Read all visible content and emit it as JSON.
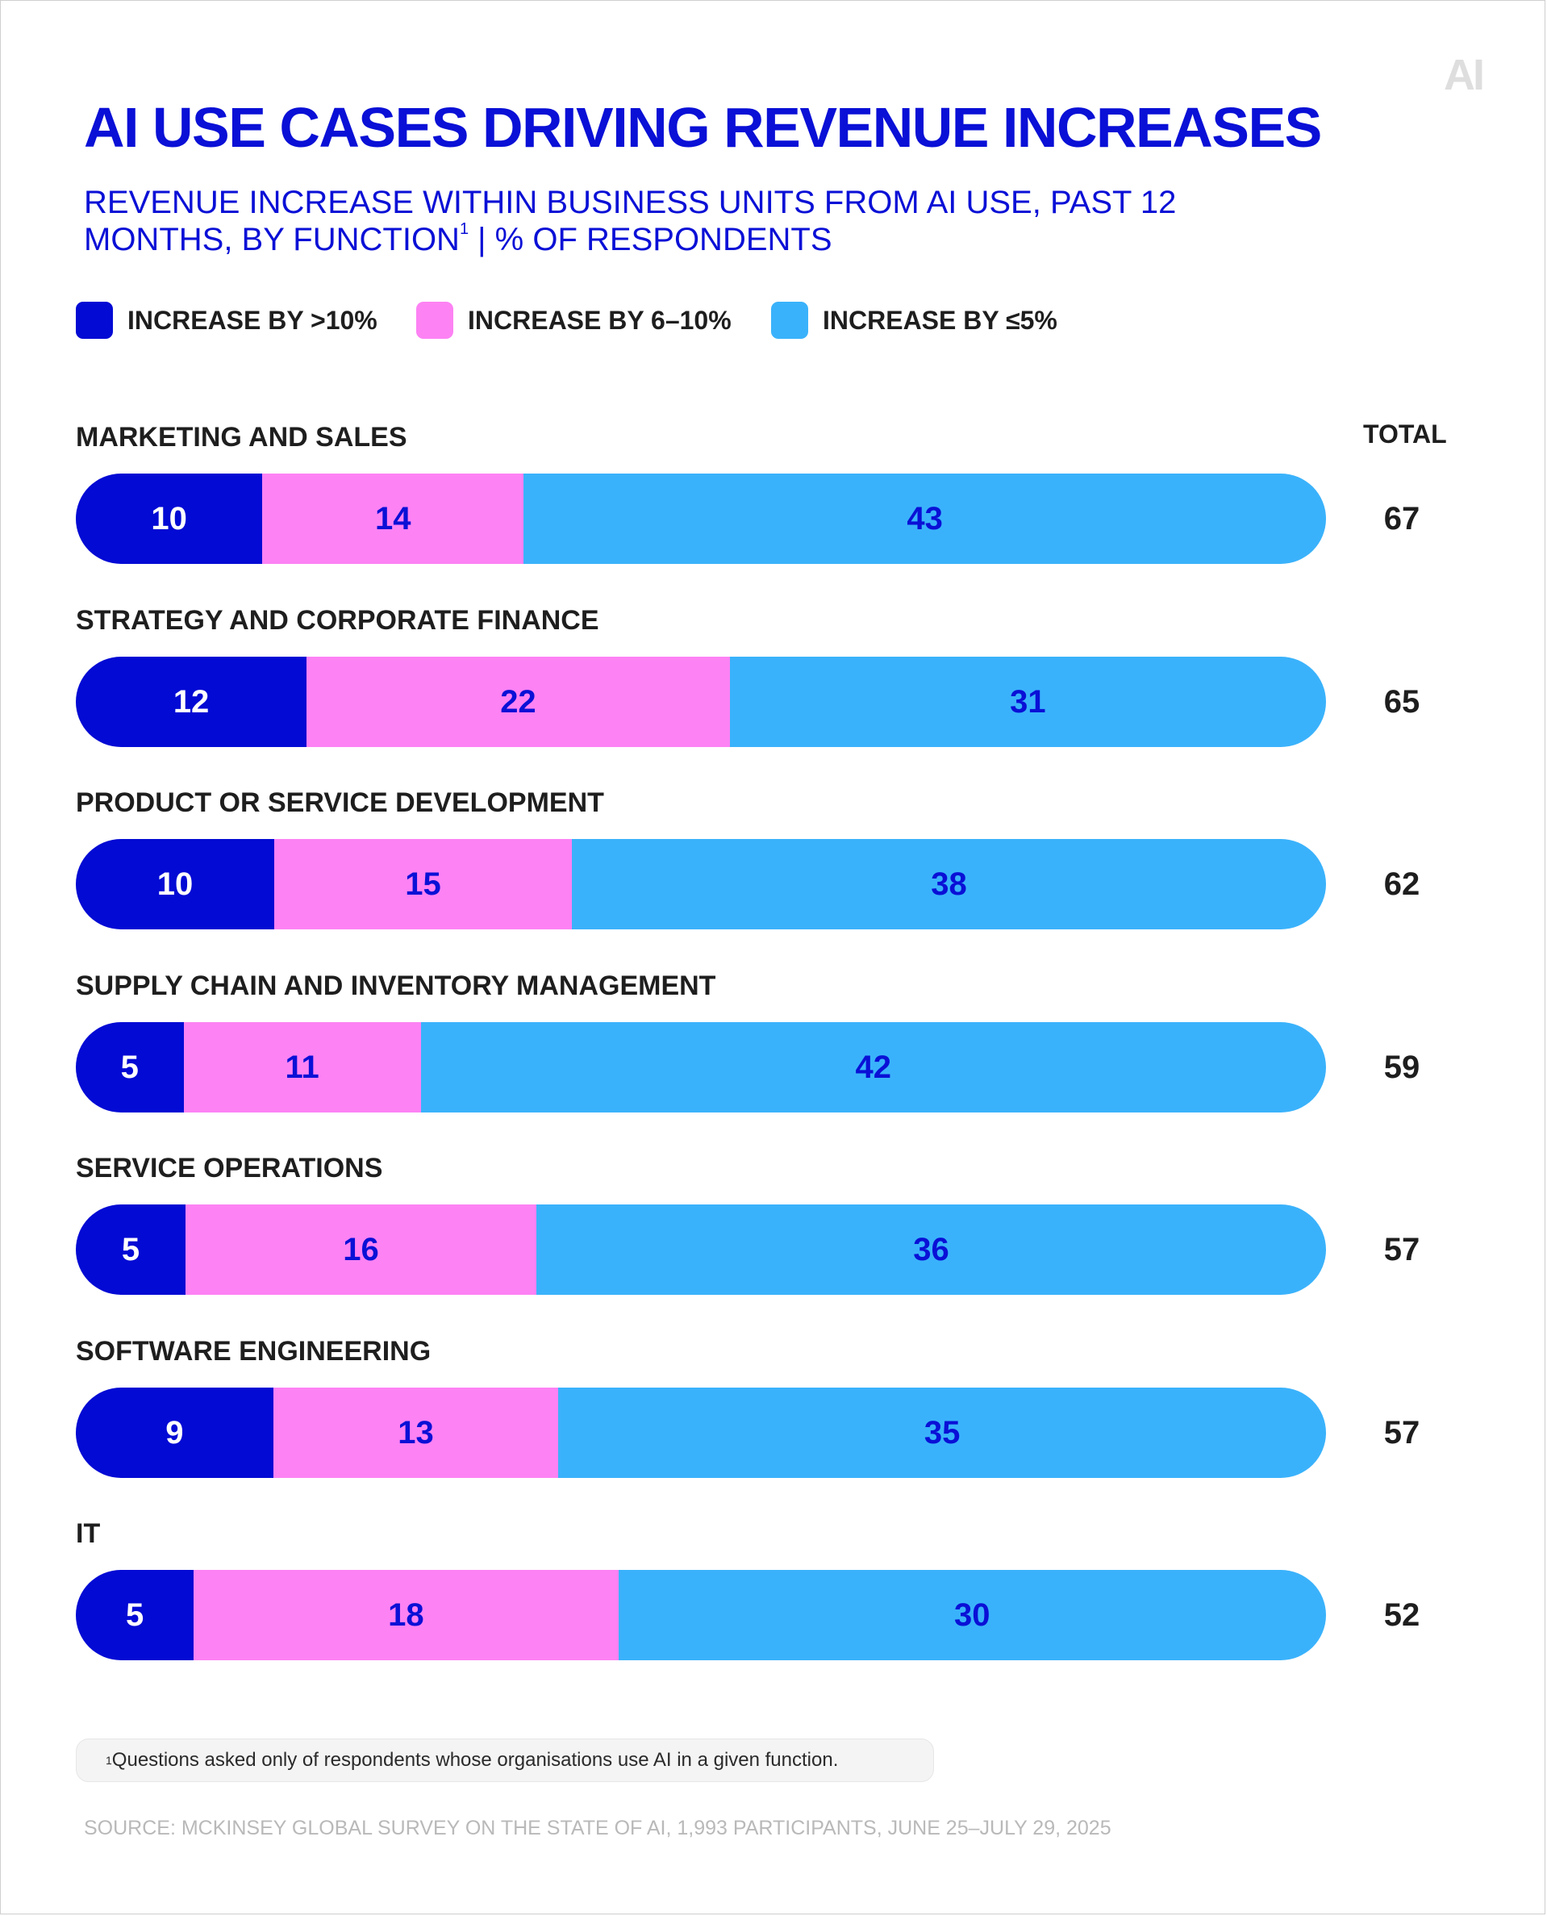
{
  "logo_text": "AI",
  "title": "AI USE CASES DRIVING REVENUE INCREASES",
  "subtitle_main": "REVENUE INCREASE WITHIN BUSINESS UNITS FROM AI USE, PAST 12 MONTHS, BY FUNCTION",
  "subtitle_sup": "1",
  "subtitle_tail": " | % OF RESPONDENTS",
  "colors": {
    "title": "#0a10d6",
    "gt10": "#020ad4",
    "six_to_ten": "#fd82f4",
    "le5": "#3ab2fb",
    "label_on_dark": "#ffffff",
    "label_on_light": "#0a10d6"
  },
  "legend": [
    {
      "label": "INCREASE BY >10%",
      "color": "#020ad4"
    },
    {
      "label": "INCREASE BY 6–10%",
      "color": "#fd82f4"
    },
    {
      "label": "INCREASE BY ≤5%",
      "color": "#3ab2fb"
    }
  ],
  "total_header": "TOTAL",
  "chart_data": {
    "type": "bar",
    "orientation": "horizontal",
    "stacked": true,
    "categories": [
      "MARKETING AND SALES",
      "STRATEGY AND CORPORATE FINANCE",
      "PRODUCT OR SERVICE DEVELOPMENT",
      "SUPPLY CHAIN AND INVENTORY MANAGEMENT",
      "SERVICE OPERATIONS",
      "SOFTWARE ENGINEERING",
      "IT"
    ],
    "series": [
      {
        "name": "INCREASE BY >10%",
        "values": [
          10,
          12,
          10,
          5,
          5,
          9,
          5
        ]
      },
      {
        "name": "INCREASE BY 6–10%",
        "values": [
          14,
          22,
          15,
          11,
          16,
          13,
          18
        ]
      },
      {
        "name": "INCREASE BY ≤5%",
        "values": [
          43,
          31,
          38,
          42,
          36,
          35,
          30
        ]
      }
    ],
    "totals": [
      67,
      65,
      62,
      59,
      57,
      57,
      52
    ],
    "legend_position": "top-left",
    "grid": false
  },
  "footnote_sup": "1",
  "footnote_text": "Questions asked only of respondents whose organisations use AI in a given function.",
  "source": "SOURCE: MCKINSEY GLOBAL SURVEY ON THE STATE OF AI, 1,993 PARTICIPANTS, JUNE 25–JULY 29, 2025"
}
